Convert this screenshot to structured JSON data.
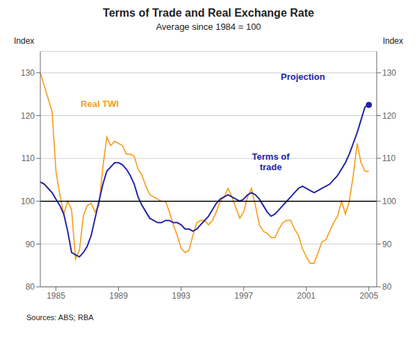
{
  "chart_data": {
    "type": "line",
    "title": "Terms of Trade and Real Exchange Rate",
    "subtitle": "Average since 1984 = 100",
    "ylabel": "Index",
    "y2label": "Index",
    "source": "Sources: ABS; RBA",
    "x": [
      1984.0,
      1984.25,
      1984.5,
      1984.75,
      1985.0,
      1985.25,
      1985.5,
      1985.75,
      1986.0,
      1986.25,
      1986.5,
      1986.75,
      1987.0,
      1987.25,
      1987.5,
      1987.75,
      1988.0,
      1988.25,
      1988.5,
      1988.75,
      1989.0,
      1989.25,
      1989.5,
      1989.75,
      1990.0,
      1990.25,
      1990.5,
      1990.75,
      1991.0,
      1991.25,
      1991.5,
      1991.75,
      1992.0,
      1992.25,
      1992.5,
      1992.75,
      1993.0,
      1993.25,
      1993.5,
      1993.75,
      1994.0,
      1994.25,
      1994.5,
      1994.75,
      1995.0,
      1995.25,
      1995.5,
      1995.75,
      1996.0,
      1996.25,
      1996.5,
      1996.75,
      1997.0,
      1997.25,
      1997.5,
      1997.75,
      1998.0,
      1998.25,
      1998.5,
      1998.75,
      1999.0,
      1999.25,
      1999.5,
      1999.75,
      2000.0,
      2000.25,
      2000.5,
      2000.75,
      2001.0,
      2001.25,
      2001.5,
      2001.75,
      2002.0,
      2002.25,
      2002.5,
      2002.75,
      2003.0,
      2003.25,
      2003.5,
      2003.75,
      2004.0,
      2004.25,
      2004.5,
      2004.75,
      2005.0
    ],
    "series": [
      {
        "name": "Real TWI",
        "color": "#f5a020",
        "values": [
          130.0,
          127.0,
          124.0,
          121.0,
          107.0,
          101.5,
          97.0,
          100.0,
          98.0,
          86.5,
          88.5,
          96.5,
          99.0,
          99.5,
          97.5,
          99.0,
          108.0,
          115.0,
          113.0,
          114.0,
          113.5,
          113.0,
          111.0,
          111.0,
          110.5,
          107.5,
          106.0,
          103.5,
          101.5,
          101.0,
          100.5,
          100.0,
          100.0,
          97.5,
          94.5,
          92.0,
          89.0,
          88.0,
          88.5,
          92.0,
          95.0,
          95.5,
          95.5,
          94.5,
          95.5,
          97.5,
          100.0,
          101.0,
          103.0,
          101.0,
          98.5,
          96.0,
          97.5,
          101.0,
          103.0,
          99.0,
          94.5,
          93.0,
          92.5,
          91.5,
          91.5,
          93.5,
          95.0,
          95.5,
          95.5,
          93.5,
          92.0,
          89.0,
          87.0,
          85.5,
          85.5,
          88.0,
          90.5,
          91.0,
          93.0,
          95.0,
          96.5,
          100.0,
          97.0,
          100.0,
          106.0,
          113.5,
          109.0,
          107.0,
          107.0
        ]
      },
      {
        "name": "Terms of\ntrade",
        "color": "#2222aa",
        "values": [
          104.5,
          104.0,
          103.0,
          102.0,
          100.5,
          99.0,
          97.0,
          93.0,
          88.0,
          87.5,
          87.0,
          88.0,
          89.5,
          92.0,
          96.0,
          100.0,
          104.0,
          107.0,
          108.0,
          109.0,
          109.0,
          108.5,
          107.5,
          106.0,
          104.0,
          101.0,
          99.0,
          97.5,
          96.0,
          95.5,
          95.0,
          95.0,
          95.5,
          95.5,
          95.0,
          95.0,
          94.5,
          93.5,
          93.5,
          93.0,
          93.5,
          94.5,
          95.5,
          96.5,
          98.0,
          99.5,
          100.5,
          101.0,
          101.5,
          101.0,
          100.5,
          100.0,
          100.5,
          101.5,
          102.0,
          101.5,
          100.5,
          99.0,
          97.5,
          96.5,
          97.0,
          98.0,
          99.0,
          100.0,
          101.0,
          102.0,
          103.0,
          103.5,
          103.0,
          102.5,
          102.0,
          102.5,
          103.0,
          103.5,
          104.0,
          105.0,
          106.0,
          107.5,
          109.0,
          111.0,
          113.5,
          116.0,
          119.0,
          122.0,
          122.5
        ]
      }
    ],
    "xlim": [
      1984.0,
      2005.5
    ],
    "xticks": [
      1985,
      1989,
      1993,
      1997,
      2001,
      2005
    ],
    "ylim": [
      80,
      135
    ],
    "yticks": [
      80,
      90,
      100,
      110,
      120,
      130
    ],
    "y2lim": [
      80,
      135
    ],
    "y2ticks": [
      80,
      90,
      100,
      110,
      120,
      130
    ],
    "grid": true,
    "hline": 100,
    "annotations": [
      {
        "text": "Projection",
        "x": 2005.0,
        "y": 122.5,
        "color": "#2222aa"
      }
    ]
  }
}
